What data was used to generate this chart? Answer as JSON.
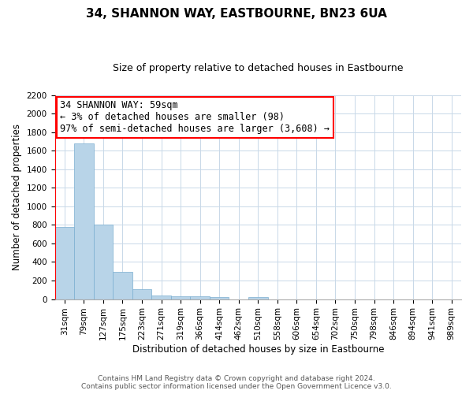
{
  "title": "34, SHANNON WAY, EASTBOURNE, BN23 6UA",
  "subtitle": "Size of property relative to detached houses in Eastbourne",
  "xlabel": "Distribution of detached houses by size in Eastbourne",
  "ylabel": "Number of detached properties",
  "footer_line1": "Contains HM Land Registry data © Crown copyright and database right 2024.",
  "footer_line2": "Contains public sector information licensed under the Open Government Licence v3.0.",
  "categories": [
    "31sqm",
    "79sqm",
    "127sqm",
    "175sqm",
    "223sqm",
    "271sqm",
    "319sqm",
    "366sqm",
    "414sqm",
    "462sqm",
    "510sqm",
    "558sqm",
    "606sqm",
    "654sqm",
    "702sqm",
    "750sqm",
    "798sqm",
    "846sqm",
    "894sqm",
    "941sqm",
    "989sqm"
  ],
  "bar_values": [
    780,
    1680,
    800,
    295,
    110,
    35,
    30,
    30,
    20,
    0,
    20,
    0,
    0,
    0,
    0,
    0,
    0,
    0,
    0,
    0,
    0
  ],
  "bar_color": "#b8d4e8",
  "bar_edge_color": "#7aaed0",
  "ylim": [
    0,
    2200
  ],
  "yticks": [
    0,
    200,
    400,
    600,
    800,
    1000,
    1200,
    1400,
    1600,
    1800,
    2000,
    2200
  ],
  "annotation_box_text_line1": "34 SHANNON WAY: 59sqm",
  "annotation_box_text_line2": "← 3% of detached houses are smaller (98)",
  "annotation_box_text_line3": "97% of semi-detached houses are larger (3,608) →",
  "annotation_box_color": "white",
  "annotation_box_edge_color": "red",
  "background_color": "#ffffff",
  "grid_color": "#c8d8e8",
  "title_fontsize": 11,
  "subtitle_fontsize": 9,
  "axis_label_fontsize": 8.5,
  "tick_fontsize": 7.5,
  "annotation_fontsize": 8.5,
  "footer_fontsize": 6.5
}
